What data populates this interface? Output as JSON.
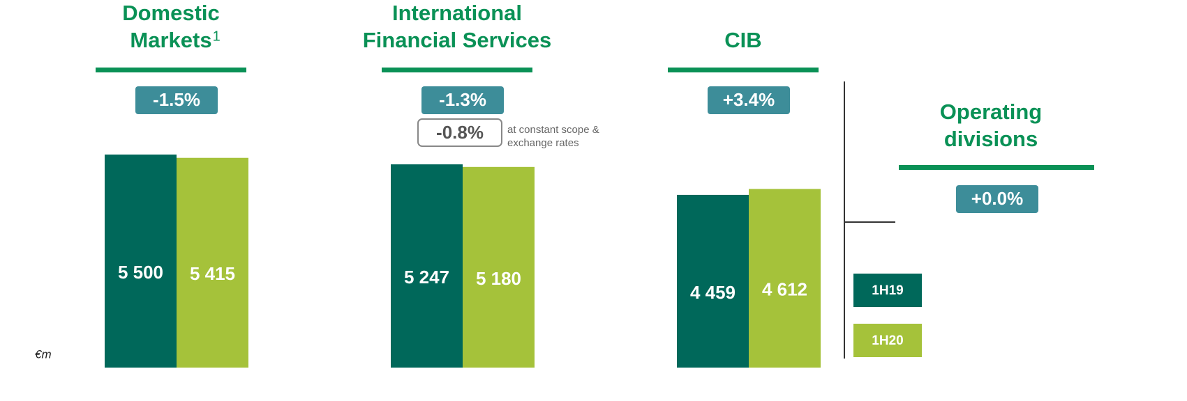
{
  "unit": "€m",
  "chart_data": [
    {
      "type": "bar",
      "title": [
        "Domestic",
        "Markets"
      ],
      "title_note": "1",
      "change": "-1.5%",
      "ylim": [
        0,
        5500
      ],
      "series": [
        {
          "name": "1H19",
          "color": "#00685a",
          "values": [
            5500
          ],
          "value_labels": [
            "5 500"
          ]
        },
        {
          "name": "1H20",
          "color": "#a5c23a",
          "values": [
            5415
          ],
          "value_labels": [
            "5 415"
          ]
        }
      ]
    },
    {
      "type": "bar",
      "title": [
        "International",
        "Financial Services"
      ],
      "change": "-1.3%",
      "change_constant": "-0.8%",
      "change_constant_note": [
        "at constant scope &",
        "exchange rates"
      ],
      "ylim": [
        0,
        5500
      ],
      "series": [
        {
          "name": "1H19",
          "color": "#00685a",
          "values": [
            5247
          ],
          "value_labels": [
            "5 247"
          ]
        },
        {
          "name": "1H20",
          "color": "#a5c23a",
          "values": [
            5180
          ],
          "value_labels": [
            "5 180"
          ]
        }
      ]
    },
    {
      "type": "bar",
      "title": [
        "CIB"
      ],
      "change": "+3.4%",
      "ylim": [
        0,
        5500
      ],
      "series": [
        {
          "name": "1H19",
          "color": "#00685a",
          "values": [
            4459
          ],
          "value_labels": [
            "4 459"
          ]
        },
        {
          "name": "1H20",
          "color": "#a5c23a",
          "values": [
            4612
          ],
          "value_labels": [
            "4 612"
          ]
        }
      ]
    }
  ],
  "total": {
    "title": [
      "Operating",
      "divisions"
    ],
    "change": "+0.0%"
  }
}
